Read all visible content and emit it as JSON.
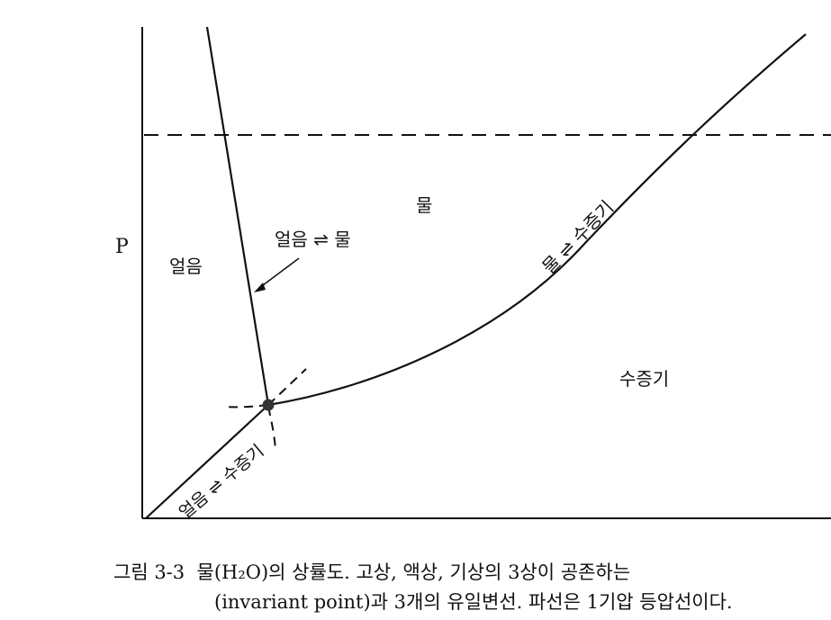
{
  "axis": {
    "y_label": "P"
  },
  "regions": {
    "ice": "얼음",
    "water": "물",
    "vapor": "수증기"
  },
  "curves": {
    "ice_water": "얼음 ⇌ 물",
    "water_vapor": "물 ⇌ 수증기",
    "ice_vapor": "얼음 ⇌ 수증기"
  },
  "caption": {
    "line1_prefix": "그림 3-3",
    "line1_text": "물(H₂O)의 상률도. 고상, 액상, 기상의 3상이 공존하는",
    "line2_text": "(invariant point)과 3개의 유일변선. 파선은 1기압 등압선이다."
  },
  "colors": {
    "ink": "#111111",
    "triple_point": "#333333"
  }
}
